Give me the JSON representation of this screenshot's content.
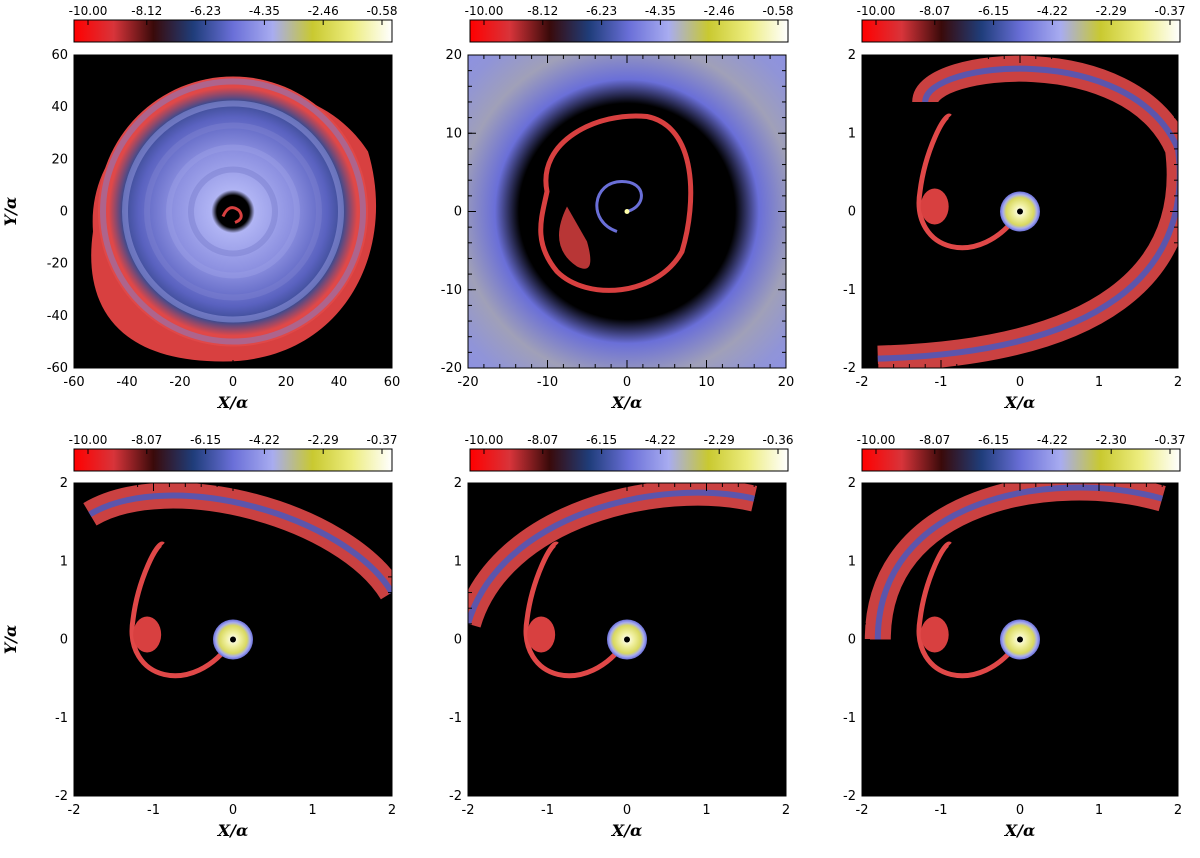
{
  "colorbar_gradient": [
    "#ff0000",
    "#d8343a",
    "#3a0a0a",
    "#1f3d7a",
    "#6a6fd8",
    "#a8acf0",
    "#c9c930",
    "#eded80",
    "#ffffff"
  ],
  "panels": [
    {
      "colorbar_ticks": [
        "-10.00",
        "-8.12",
        "-6.23",
        "-4.35",
        "-2.46",
        "-0.58"
      ],
      "x_ticks": [
        "-60",
        "-40",
        "-20",
        "0",
        "20",
        "40",
        "60"
      ],
      "y_ticks": [
        "60",
        "40",
        "20",
        "0",
        "-20",
        "-40",
        "-60"
      ],
      "xlabel": "X/α",
      "ylabel": "Y/α"
    },
    {
      "colorbar_ticks": [
        "-10.00",
        "-8.12",
        "-6.23",
        "-4.35",
        "-2.46",
        "-0.58"
      ],
      "x_ticks": [
        "-20",
        "-10",
        "0",
        "10",
        "20"
      ],
      "y_ticks": [
        "20",
        "10",
        "0",
        "-10",
        "-20"
      ],
      "xlabel": "X/α",
      "ylabel": ""
    },
    {
      "colorbar_ticks": [
        "-10.00",
        "-8.07",
        "-6.15",
        "-4.22",
        "-2.29",
        "-0.37"
      ],
      "x_ticks": [
        "-2",
        "-1",
        "0",
        "1",
        "2"
      ],
      "y_ticks": [
        "2",
        "1",
        "0",
        "-1",
        "-2"
      ],
      "xlabel": "X/α",
      "ylabel": ""
    },
    {
      "colorbar_ticks": [
        "-10.00",
        "-8.07",
        "-6.15",
        "-4.22",
        "-2.29",
        "-0.37"
      ],
      "x_ticks": [
        "-2",
        "-1",
        "0",
        "1",
        "2"
      ],
      "y_ticks": [
        "2",
        "1",
        "0",
        "-1",
        "-2"
      ],
      "xlabel": "X/α",
      "ylabel": "Y/α"
    },
    {
      "colorbar_ticks": [
        "-10.00",
        "-8.07",
        "-6.15",
        "-4.22",
        "-2.29",
        "-0.36"
      ],
      "x_ticks": [
        "-2",
        "-1",
        "0",
        "1",
        "2"
      ],
      "y_ticks": [
        "2",
        "1",
        "0",
        "-1",
        "-2"
      ],
      "xlabel": "X/α",
      "ylabel": ""
    },
    {
      "colorbar_ticks": [
        "-10.00",
        "-8.07",
        "-6.15",
        "-4.22",
        "-2.30",
        "-0.37"
      ],
      "x_ticks": [
        "-2",
        "-1",
        "0",
        "1",
        "2"
      ],
      "y_ticks": [
        "2",
        "1",
        "0",
        "-1",
        "-2"
      ],
      "xlabel": "X/α",
      "ylabel": ""
    }
  ]
}
